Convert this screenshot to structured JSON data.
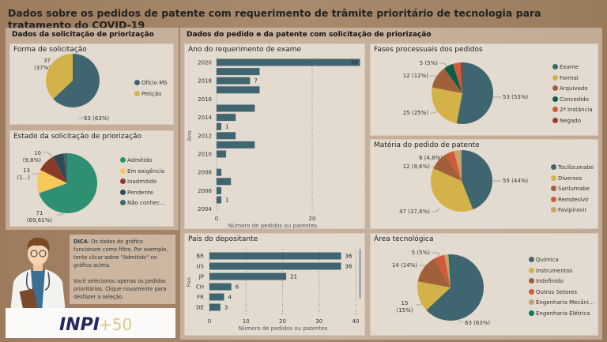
{
  "header": {
    "title": "Dados sobre os pedidos de patente com requerimento de trâmite prioritário de tecnologia para tratamento do COVID-19"
  },
  "left_panel": {
    "title": "Dados da solicitação de priorização"
  },
  "right_panel": {
    "title": "Dados do pedido e da patente com solicitação de priorização"
  },
  "forma": {
    "title": "Forma de solicitação",
    "type": "pie",
    "slices": [
      {
        "label": "Ofício MS",
        "value": 63,
        "data_label": "63 (63%)",
        "color": "#3f6670"
      },
      {
        "label": "Petição",
        "value": 37,
        "data_label": "37 (37%)",
        "color": "#d4b24a"
      }
    ],
    "labels": {
      "a1": "37",
      "a2": "(37%)",
      "b": "63 (63%)"
    }
  },
  "estado": {
    "title": "Estado da solicitação de priorização",
    "type": "pie",
    "slices": [
      {
        "label": "Admitido",
        "value": 71,
        "color": "#2e8f72"
      },
      {
        "label": "Em exigência",
        "value": 13,
        "color": "#f5c85a"
      },
      {
        "label": "Inadmitido",
        "value": 10,
        "color": "#8a3b28"
      },
      {
        "label": "Pendente",
        "value": 6,
        "color": "#2f4a52"
      },
      {
        "label": "Não conhec...",
        "value": 2,
        "color": "#3f6670"
      }
    ],
    "labels": {
      "a1": "10",
      "a2": "(9,8%)",
      "b1": "13",
      "b2": "(1...)",
      "c1": "71",
      "c2": "(69,61%)"
    }
  },
  "ano": {
    "title": "Ano do requerimento de exame",
    "type": "bar",
    "ylabel": "Ano",
    "xlabel": "Número de pedidos ou patentes",
    "years": [
      2020,
      2019,
      2018,
      2017,
      2016,
      2015,
      2014,
      2013,
      2012,
      2011,
      2010,
      2009,
      2008,
      2007,
      2006,
      2005,
      2004
    ],
    "values": [
      30,
      9,
      7,
      9,
      0,
      8,
      4,
      1,
      4,
      8,
      2,
      0,
      1,
      3,
      1,
      1,
      0
    ],
    "data_labels": {
      "2020": "30",
      "2018": "7",
      "2013": "1",
      "2005": "1"
    },
    "tick_labels": [
      "2020",
      "2018",
      "2016",
      "2014",
      "2012",
      "2010",
      "2008",
      "2006",
      "2004"
    ],
    "x_ticks": [
      "0",
      "20"
    ],
    "xlim": [
      0,
      30
    ]
  },
  "fases": {
    "title": "Fases processuais dos pedidos",
    "type": "pie",
    "slices": [
      {
        "label": "Exame",
        "value": 53,
        "color": "#3f6670"
      },
      {
        "label": "Formal",
        "value": 25,
        "color": "#d4b24a"
      },
      {
        "label": "Arquivado",
        "value": 12,
        "color": "#a0603a"
      },
      {
        "label": "Concedido",
        "value": 5,
        "color": "#0b5e45"
      },
      {
        "label": "2ª Instância",
        "value": 4,
        "color": "#d05a3a"
      },
      {
        "label": "Negado",
        "value": 1,
        "color": "#9a3a28"
      }
    ],
    "labels": {
      "a": "5 (5%)",
      "b": "12 (12%)",
      "c": "25 (25%)",
      "d": "53 (53%)"
    }
  },
  "materia": {
    "title": "Matéria do pedido de patente",
    "type": "pie",
    "slices": [
      {
        "label": "Tocilizumabe",
        "value": 55,
        "color": "#3f6670"
      },
      {
        "label": "Diversos",
        "value": 47,
        "color": "#d4b24a"
      },
      {
        "label": "Sarilumabe",
        "value": 12,
        "color": "#a0603a"
      },
      {
        "label": "Remdesivir",
        "value": 6,
        "color": "#d05a3a"
      },
      {
        "label": "Favipiravir",
        "value": 5,
        "color": "#c9a070"
      }
    ],
    "labels": {
      "a": "6 (4,8%)",
      "b": "12 (9,6%)",
      "c": "47 (37,6%)",
      "d": "55 (44%)"
    }
  },
  "pais": {
    "title": "País do depositante",
    "type": "bar",
    "ylabel": "País",
    "xlabel": "Número de pedidos ou patentes",
    "categories": [
      "BR",
      "US",
      "JP",
      "CH",
      "FR",
      "DE"
    ],
    "values": [
      36,
      36,
      21,
      6,
      4,
      3
    ],
    "x_ticks": [
      "0",
      "10",
      "20",
      "30",
      "40"
    ],
    "xlim": [
      0,
      40
    ]
  },
  "area": {
    "title": "Área tecnológica",
    "type": "pie",
    "slices": [
      {
        "label": "Química",
        "value": 63,
        "color": "#3f6670"
      },
      {
        "label": "Instrumentos",
        "value": 15,
        "color": "#d4b24a"
      },
      {
        "label": "Indefinido",
        "value": 14,
        "color": "#a0603a"
      },
      {
        "label": "Outros Setores",
        "value": 5,
        "color": "#d05a3a"
      },
      {
        "label": "Engenharia Mecâni...",
        "value": 2,
        "color": "#c9a070"
      },
      {
        "label": "Engenharia Elétrica",
        "value": 1,
        "color": "#0b7a55"
      }
    ],
    "labels": {
      "a": "5 (5%)",
      "b": "14 (14%)",
      "c1": "15",
      "c2": "(15%)",
      "d": "63 (63%)"
    }
  },
  "tip": {
    "bold": "DICA",
    "p1": ": Os dados do gráfico funcionam como filtro. Por exemplo, tente clicar sobre \"Admitido\" no gráfico acima.",
    "p2": "Você selecionou apenas os pedidos prioritários. Clique novamente para desfazer a seleção."
  },
  "logo": {
    "text": "INPI+50"
  }
}
